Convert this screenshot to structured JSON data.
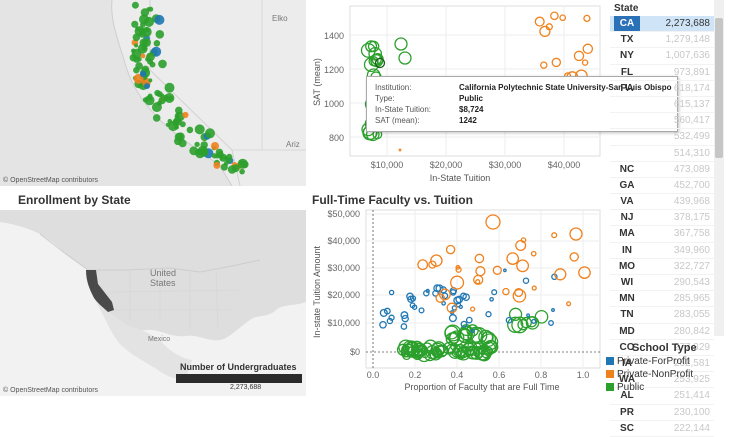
{
  "top_map": {
    "credit": "© OpenStreetMap contributors",
    "labels": [
      "Ariz",
      "Elko"
    ]
  },
  "enrollment_map": {
    "title": "Enrollment by State",
    "credit": "© OpenStreetMap contributors",
    "labels": {
      "us": "United\nStates",
      "mexico": "Mexico"
    },
    "legend_title": "Number of Undergraduates",
    "legend_value": "2,273,688"
  },
  "sat_chart": {
    "ylabel": "SAT (mean)",
    "xlabel": "In-State Tuition",
    "yticks": [
      "1400",
      "1200",
      "1000",
      "800"
    ],
    "xticks": [
      "$10,000",
      "$20,000",
      "$30,000",
      "$40,000"
    ]
  },
  "tooltip": {
    "institution_label": "Institution:",
    "institution": "California Polytechnic State University-San Luis Obispo",
    "type_label": "Type:",
    "type": "Public",
    "tuition_label": "In-State Tuition:",
    "tuition": "$8,724",
    "sat_label": "SAT (mean):",
    "sat": "1242"
  },
  "faculty_chart": {
    "title": "Full-Time Faculty vs. Tuition",
    "ylabel": "In-state Tuition Amount",
    "xlabel": "Proportion of Faculty that are Full Time",
    "yticks": [
      "$50,000",
      "$40,000",
      "$30,000",
      "$20,000",
      "$10,000",
      "$0"
    ],
    "xticks": [
      "0.0",
      "0.2",
      "0.4",
      "0.6",
      "0.8",
      "1.0"
    ]
  },
  "state_list": {
    "header": "State",
    "rows": [
      {
        "abbr": "CA",
        "value": "2,273,688"
      },
      {
        "abbr": "TX",
        "value": "1,279,148"
      },
      {
        "abbr": "NY",
        "value": "1,007,636"
      },
      {
        "abbr": "FL",
        "value": "973,891"
      },
      {
        "abbr": "PA",
        "value": "618,174"
      },
      {
        "abbr": "",
        "value": "615,137"
      },
      {
        "abbr": "",
        "value": "560,417"
      },
      {
        "abbr": "",
        "value": "532,499"
      },
      {
        "abbr": "",
        "value": "514,310"
      },
      {
        "abbr": "NC",
        "value": "473,089"
      },
      {
        "abbr": "GA",
        "value": "452,700"
      },
      {
        "abbr": "VA",
        "value": "439,968"
      },
      {
        "abbr": "NJ",
        "value": "378,175"
      },
      {
        "abbr": "MA",
        "value": "367,758"
      },
      {
        "abbr": "IN",
        "value": "349,960"
      },
      {
        "abbr": "MO",
        "value": "322,727"
      },
      {
        "abbr": "WI",
        "value": "290,543"
      },
      {
        "abbr": "MN",
        "value": "285,965"
      },
      {
        "abbr": "TN",
        "value": "283,055"
      },
      {
        "abbr": "MD",
        "value": "280,842"
      },
      {
        "abbr": "CO",
        "value": "277,329"
      },
      {
        "abbr": "IA",
        "value": "262,581"
      },
      {
        "abbr": "WA",
        "value": "253,925"
      },
      {
        "abbr": "AL",
        "value": "251,414"
      },
      {
        "abbr": "PR",
        "value": "230,100"
      },
      {
        "abbr": "SC",
        "value": "222,144"
      }
    ]
  },
  "legend": {
    "title": "School Type",
    "items": [
      {
        "label": "Private-ForProfit",
        "color": "#1f77b4"
      },
      {
        "label": "Private-NonProfit",
        "color": "#f0821e"
      },
      {
        "label": "Public",
        "color": "#2ca02c"
      }
    ]
  },
  "colors": {
    "forprofit": "#1f77b4",
    "nonprofit": "#f0821e",
    "public": "#2ca02c",
    "selected_row": "#2a71b8"
  }
}
